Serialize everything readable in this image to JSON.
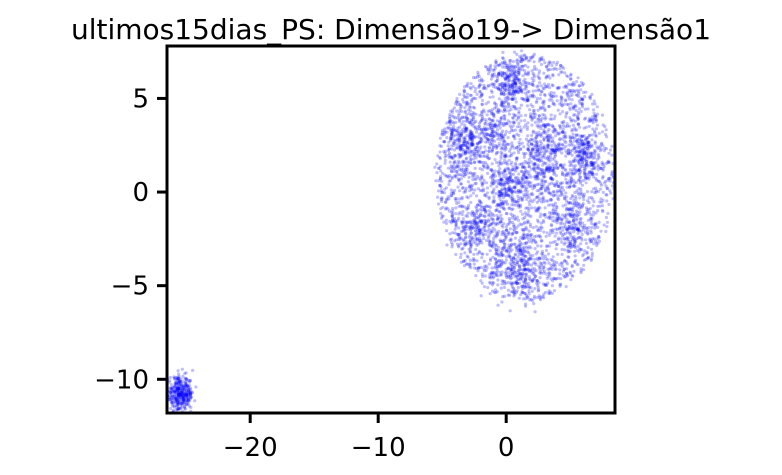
{
  "chart_data": {
    "type": "scatter",
    "title": "ultimos15dias_PS: Dimensão19-> Dimensão1",
    "xlabel": "",
    "ylabel": "",
    "xlim": [
      -26.5,
      8.5
    ],
    "ylim": [
      -11.8,
      7.8
    ],
    "x_ticks": [
      -20,
      -10,
      0
    ],
    "x_tick_labels": [
      "−20",
      "−10",
      "0"
    ],
    "y_ticks": [
      5,
      0,
      -5,
      -10
    ],
    "y_tick_labels": [
      "5",
      "0",
      "−5",
      "−10"
    ],
    "grid": false,
    "legend": "none",
    "point_color": "#0000ff",
    "point_opacity": 0.25,
    "series": [
      {
        "clusters": [
          {
            "cx": 1.5,
            "cy": 0.8,
            "rx": 7.0,
            "ry": 6.6,
            "n": 2600,
            "kind": "uniform-ellipse"
          },
          {
            "cx": -3.2,
            "cy": 2.8,
            "sx": 0.8,
            "sy": 0.8,
            "n": 220,
            "kind": "gaussian"
          },
          {
            "cx": 0.3,
            "cy": 5.8,
            "sx": 0.6,
            "sy": 0.7,
            "n": 160,
            "kind": "gaussian"
          },
          {
            "cx": 2.8,
            "cy": 1.8,
            "sx": 0.9,
            "sy": 1.3,
            "n": 280,
            "kind": "gaussian"
          },
          {
            "cx": 6.0,
            "cy": 1.8,
            "sx": 0.6,
            "sy": 0.7,
            "n": 160,
            "kind": "gaussian"
          },
          {
            "cx": 1.0,
            "cy": -3.8,
            "sx": 1.1,
            "sy": 1.0,
            "n": 260,
            "kind": "gaussian"
          },
          {
            "cx": -2.2,
            "cy": -1.8,
            "sx": 0.8,
            "sy": 0.6,
            "n": 120,
            "kind": "gaussian"
          },
          {
            "cx": 0.0,
            "cy": 0.3,
            "sx": 0.7,
            "sy": 0.6,
            "n": 130,
            "kind": "gaussian"
          },
          {
            "cx": 5.2,
            "cy": -2.0,
            "sx": 0.6,
            "sy": 0.9,
            "n": 110,
            "kind": "gaussian"
          },
          {
            "cx": -1.0,
            "cy": 3.2,
            "sx": 0.6,
            "sy": 0.5,
            "n": 90,
            "kind": "gaussian"
          },
          {
            "cx": -25.5,
            "cy": -10.8,
            "sx": 0.55,
            "sy": 0.45,
            "n": 380,
            "kind": "gaussian"
          }
        ]
      }
    ]
  }
}
